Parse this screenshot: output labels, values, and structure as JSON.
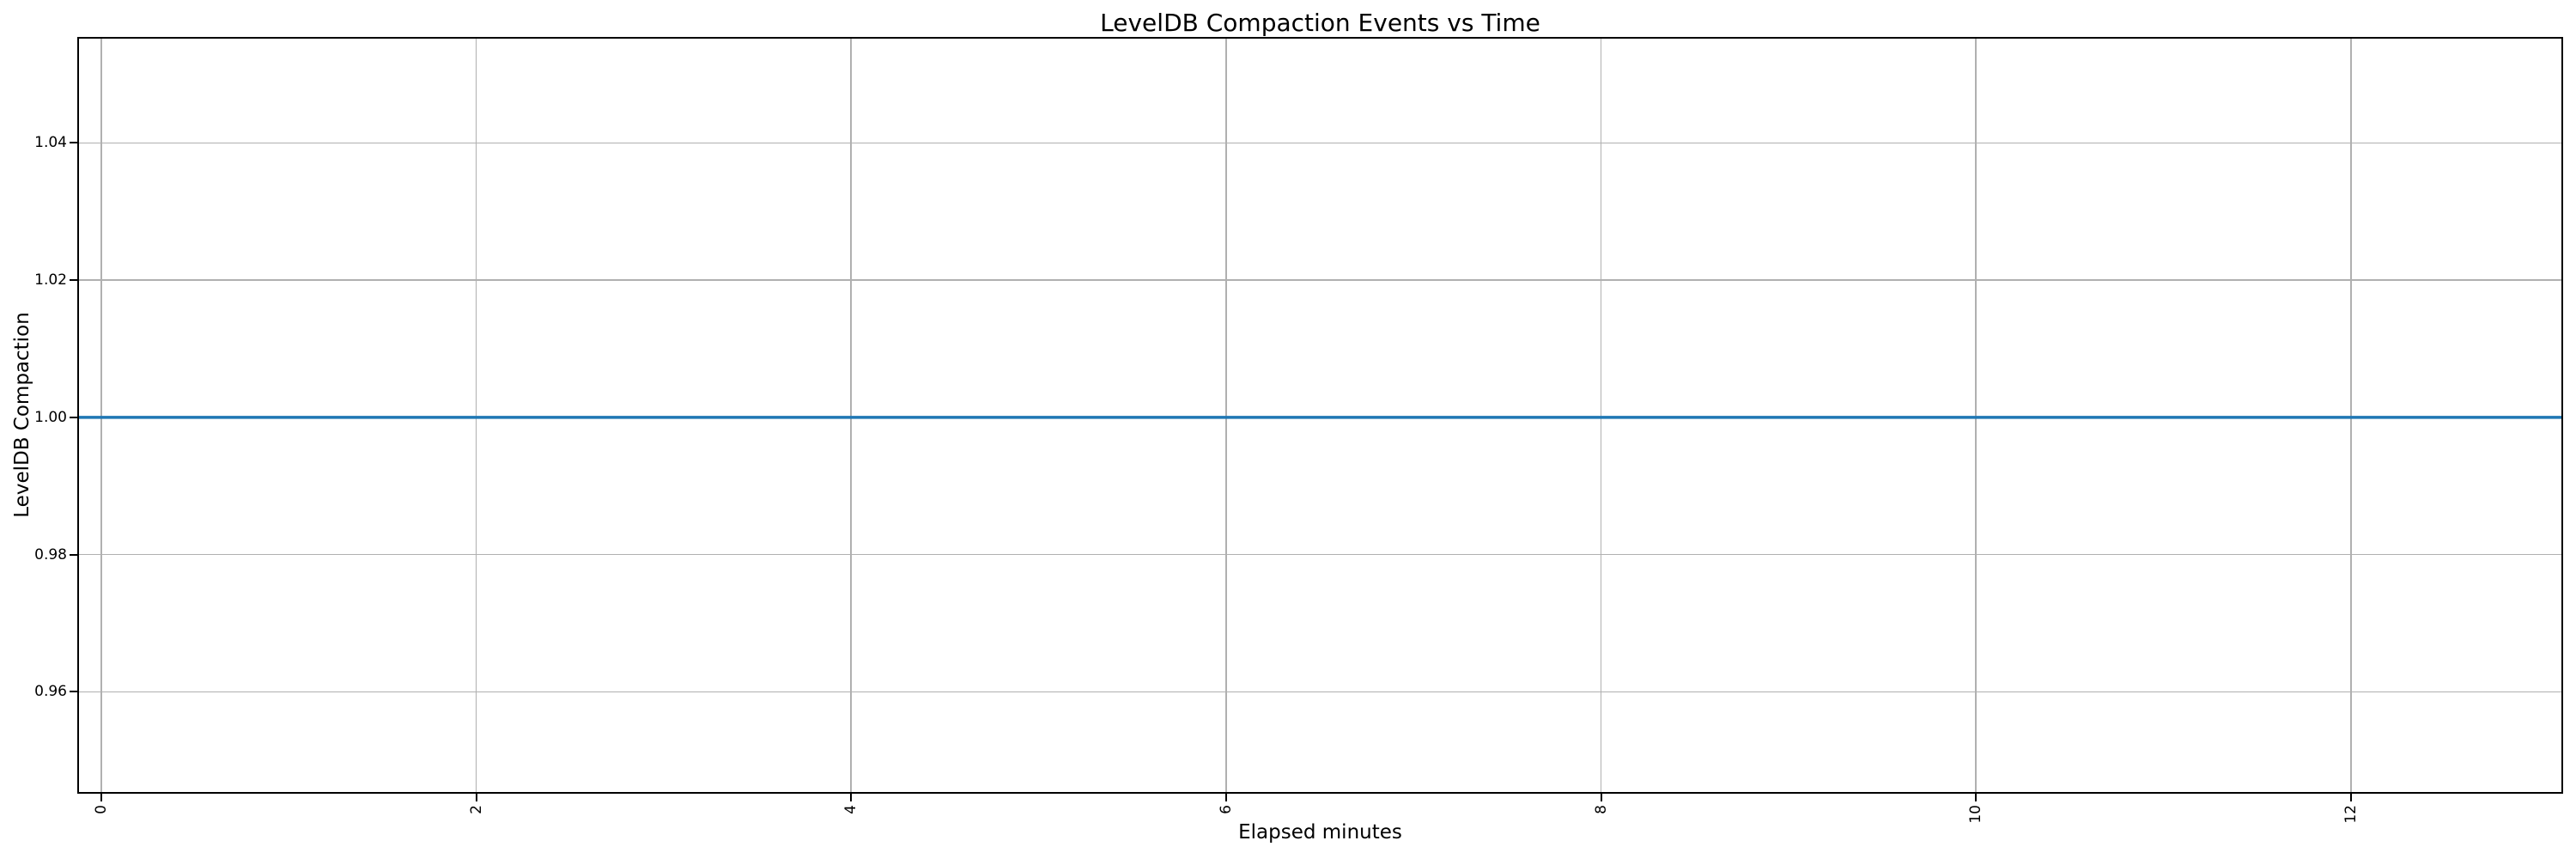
{
  "figure": {
    "background_color": "#ffffff",
    "text_color": "#000000",
    "spine_color": "#000000"
  },
  "chart_data": {
    "type": "line",
    "title": "LevelDB Compaction Events vs Time",
    "xlabel": "Elapsed minutes",
    "ylabel": "LevelDB Compaction",
    "xlim": [
      -0.128,
      13.132
    ],
    "ylim": [
      0.94513,
      1.05545
    ],
    "x_ticks": [
      0,
      2,
      4,
      6,
      8,
      10,
      12
    ],
    "x_tick_labels": [
      "0",
      "2",
      "4",
      "6",
      "8",
      "10",
      "12"
    ],
    "x_tick_rotation_deg": 90,
    "y_ticks": [
      0.96,
      0.98,
      1.0,
      1.02,
      1.04
    ],
    "y_tick_labels": [
      "0.96",
      "0.98",
      "1.00",
      "1.02",
      "1.04"
    ],
    "grid": true,
    "grid_color": "#b0b0b0",
    "legend": false,
    "series": [
      {
        "name": "LevelDB Compaction",
        "color": "#1f77b4",
        "style": "solid",
        "x": [
          -0.128,
          13.132
        ],
        "y": [
          1.0,
          1.0
        ]
      }
    ]
  }
}
